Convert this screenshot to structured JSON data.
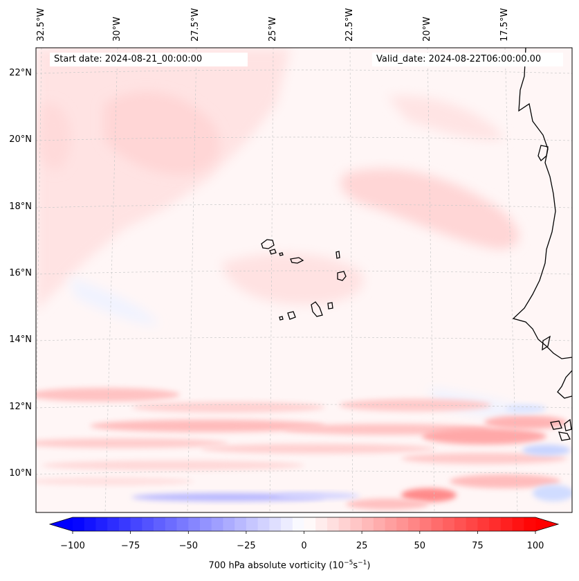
{
  "map": {
    "header": {
      "start_date": "Start date: 2024-08-21_00:00:00",
      "valid_date": "Valid_date: 2024-08-22T06:00:00.00"
    },
    "lon_labels": [
      "32.5°W",
      "30°W",
      "27.5°W",
      "25°W",
      "22.5°W",
      "20°W",
      "17.5°W"
    ],
    "lat_labels": [
      "22°N",
      "20°N",
      "18°N",
      "16°N",
      "14°N",
      "12°N",
      "10°N"
    ],
    "colorbar": {
      "ticks": [
        "−100",
        "−75",
        "−50",
        "−25",
        "0",
        "25",
        "50",
        "75",
        "100"
      ],
      "title_main": "700 hPa absolute vorticity (10",
      "title_exp1": "−5",
      "title_mid": "s",
      "title_exp2": "−1",
      "title_end": ")",
      "vmin": -100,
      "vmax": 100,
      "levels": 40
    },
    "colors": {
      "positive": "#ff0000",
      "negative": "#0000ff",
      "land_outline": "#000000",
      "gridline": "#c8c8c8"
    }
  }
}
